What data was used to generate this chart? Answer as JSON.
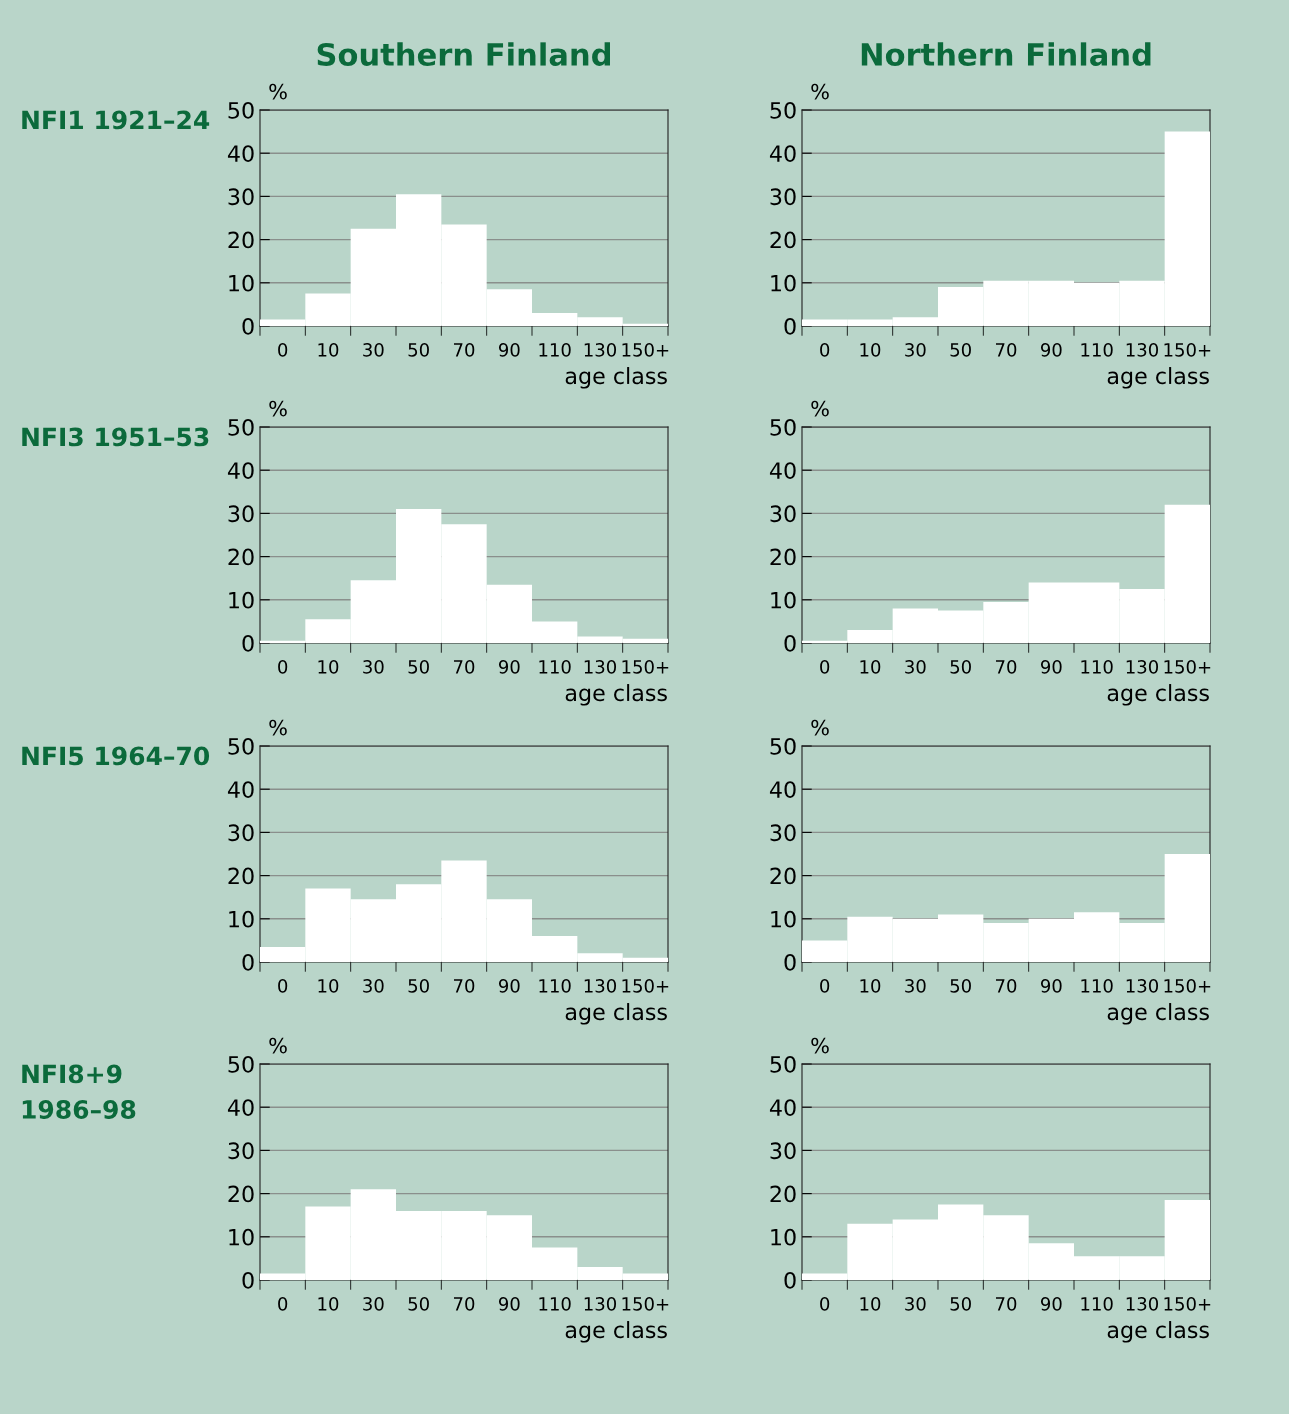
{
  "chart_data": [
    {
      "type": "bar",
      "title": "Southern Finland",
      "annotations": [
        "NFI1 1921–24"
      ],
      "ylabel": "%",
      "xlabel": "age class",
      "categories": [
        "0",
        "10",
        "30",
        "50",
        "70",
        "90",
        "110",
        "130",
        "150+"
      ],
      "values": [
        1.5,
        7.5,
        22.5,
        30.5,
        23.5,
        8.5,
        3,
        2,
        0.5
      ],
      "color": "#ffffff",
      "ylim": [
        0,
        50
      ],
      "yticks": [
        0,
        10,
        20,
        30,
        40,
        50
      ],
      "grid": "y"
    },
    {
      "type": "bar",
      "title": "Northern Finland",
      "ylabel": "%",
      "xlabel": "age class",
      "categories": [
        "0",
        "10",
        "30",
        "50",
        "70",
        "90",
        "110",
        "130",
        "150+"
      ],
      "values": [
        1.5,
        1.5,
        2,
        9,
        10.5,
        10.5,
        10,
        10.5,
        45
      ],
      "color": "#ffffff",
      "ylim": [
        0,
        50
      ],
      "yticks": [
        0,
        10,
        20,
        30,
        40,
        50
      ],
      "grid": "y"
    },
    {
      "type": "bar",
      "annotations": [
        "NFI3 1951–53"
      ],
      "ylabel": "%",
      "xlabel": "age class",
      "categories": [
        "0",
        "10",
        "30",
        "50",
        "70",
        "90",
        "110",
        "130",
        "150+"
      ],
      "values": [
        0.5,
        5.5,
        14.5,
        31,
        27.5,
        13.5,
        5,
        1.5,
        1
      ],
      "color": "#ffffff",
      "ylim": [
        0,
        50
      ],
      "yticks": [
        0,
        10,
        20,
        30,
        40,
        50
      ],
      "grid": "y"
    },
    {
      "type": "bar",
      "ylabel": "%",
      "xlabel": "age class",
      "categories": [
        "0",
        "10",
        "30",
        "50",
        "70",
        "90",
        "110",
        "130",
        "150+"
      ],
      "values": [
        0.5,
        3,
        8,
        7.5,
        9.5,
        14,
        14,
        12.5,
        32
      ],
      "color": "#ffffff",
      "ylim": [
        0,
        50
      ],
      "yticks": [
        0,
        10,
        20,
        30,
        40,
        50
      ],
      "grid": "y"
    },
    {
      "type": "bar",
      "annotations": [
        "NFI5 1964–70"
      ],
      "ylabel": "%",
      "xlabel": "age class",
      "categories": [
        "0",
        "10",
        "30",
        "50",
        "70",
        "90",
        "110",
        "130",
        "150+"
      ],
      "values": [
        3.5,
        17,
        14.5,
        18,
        23.5,
        14.5,
        6,
        2,
        1
      ],
      "color": "#ffffff",
      "ylim": [
        0,
        50
      ],
      "yticks": [
        0,
        10,
        20,
        30,
        40,
        50
      ],
      "grid": "y"
    },
    {
      "type": "bar",
      "ylabel": "%",
      "xlabel": "age class",
      "categories": [
        "0",
        "10",
        "30",
        "50",
        "70",
        "90",
        "110",
        "130",
        "150+"
      ],
      "values": [
        5,
        10.5,
        10,
        11,
        9,
        10,
        11.5,
        9,
        25
      ],
      "color": "#ffffff",
      "ylim": [
        0,
        50
      ],
      "yticks": [
        0,
        10,
        20,
        30,
        40,
        50
      ],
      "grid": "y"
    },
    {
      "type": "bar",
      "annotations": [
        "NFI8+9\n1986–98"
      ],
      "ylabel": "%",
      "xlabel": "age class",
      "categories": [
        "0",
        "10",
        "30",
        "50",
        "70",
        "90",
        "110",
        "130",
        "150+"
      ],
      "values": [
        1.5,
        17,
        21,
        16,
        16,
        15,
        7.5,
        3,
        1.5
      ],
      "color": "#ffffff",
      "ylim": [
        0,
        50
      ],
      "yticks": [
        0,
        10,
        20,
        30,
        40,
        50
      ],
      "grid": "y"
    },
    {
      "type": "bar",
      "ylabel": "%",
      "xlabel": "age class",
      "categories": [
        "0",
        "10",
        "30",
        "50",
        "70",
        "90",
        "110",
        "130",
        "150+"
      ],
      "values": [
        1.5,
        13,
        14,
        17.5,
        15,
        8.5,
        5.5,
        5.5,
        18.5
      ],
      "color": "#ffffff",
      "ylim": [
        0,
        50
      ],
      "yticks": [
        0,
        10,
        20,
        30,
        40,
        50
      ],
      "grid": "y"
    }
  ]
}
